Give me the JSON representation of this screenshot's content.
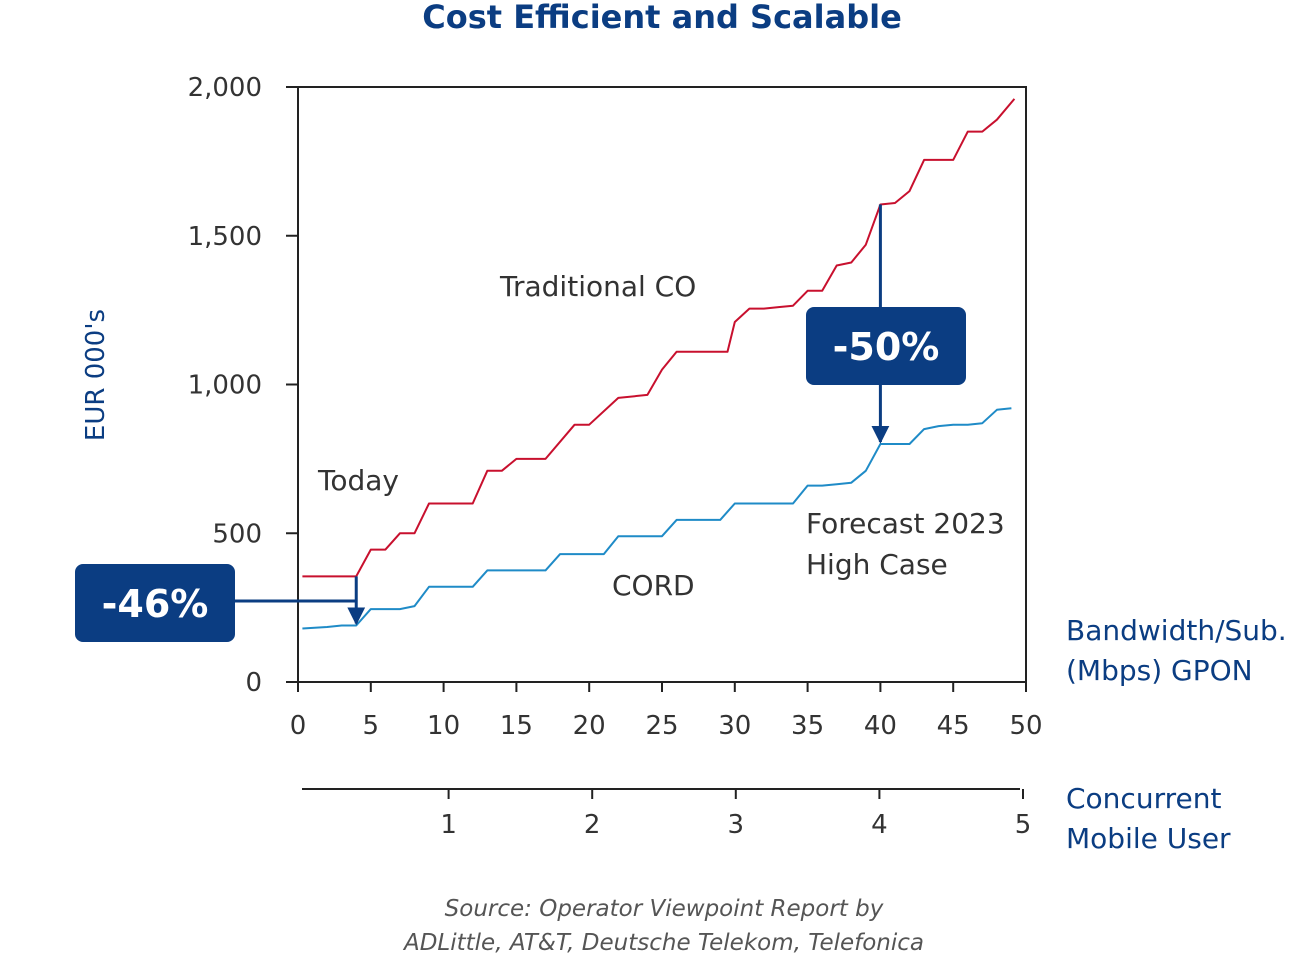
{
  "colors": {
    "traditional": "#c8102e",
    "cord": "#1f8bc7",
    "accent": "#0b3d82",
    "axis": "#222222"
  },
  "chart_data": {
    "type": "line",
    "title": "Cost Efficient and Scalable",
    "ylabel": "EUR 000's",
    "xlabel": "Bandwidth/Sub. (Mbps) GPON",
    "xlabel_lines": [
      "Bandwidth/Sub.",
      "(Mbps) GPON"
    ],
    "ylim": [
      0,
      2000
    ],
    "xlim": [
      0,
      50
    ],
    "yticks": [
      0,
      500,
      1000,
      1500,
      2000
    ],
    "ytick_labels": [
      "0",
      "500",
      "1,000",
      "1,500",
      "2,000"
    ],
    "xticks": [
      0,
      5,
      10,
      15,
      20,
      25,
      30,
      35,
      40,
      45,
      50
    ],
    "xtick_labels": [
      "0",
      "5",
      "10",
      "15",
      "20",
      "25",
      "30",
      "35",
      "40",
      "45",
      "50"
    ],
    "secondary_axis": {
      "label": "Concurrent Mobile User",
      "label_lines": [
        "Concurrent",
        "Mobile User"
      ],
      "ticks": [
        1,
        2,
        3,
        4,
        5
      ],
      "tick_labels": [
        "1",
        "2",
        "3",
        "4",
        "5"
      ]
    },
    "series": [
      {
        "name": "Traditional CO",
        "x": [
          0.3,
          4.0,
          5.0,
          6.0,
          7.0,
          8.0,
          9.0,
          10.0,
          12.0,
          13.0,
          14.0,
          15.0,
          17.0,
          19.0,
          20.0,
          22.0,
          24.0,
          25.0,
          26.0,
          28.0,
          29.5,
          30.0,
          31.0,
          32.0,
          33.0,
          34.0,
          35.0,
          36.0,
          37.0,
          38.0,
          39.0,
          40.0,
          41.0,
          42.0,
          43.0,
          44.0,
          45.0,
          46.0,
          47.0,
          48.0,
          49.2
        ],
        "y": [
          355,
          355,
          445,
          445,
          500,
          500,
          600,
          600,
          600,
          710,
          710,
          750,
          750,
          865,
          865,
          955,
          965,
          1050,
          1110,
          1110,
          1110,
          1210,
          1255,
          1255,
          1260,
          1265,
          1315,
          1315,
          1400,
          1410,
          1470,
          1605,
          1610,
          1650,
          1755,
          1755,
          1755,
          1850,
          1850,
          1890,
          1960
        ]
      },
      {
        "name": "CORD",
        "x": [
          0.3,
          2.0,
          3.0,
          4.0,
          5.0,
          6.0,
          7.0,
          8.0,
          9.0,
          10.0,
          11.0,
          12.0,
          13.0,
          14.0,
          15.0,
          16.0,
          17.0,
          18.0,
          19.0,
          20.0,
          21.0,
          22.0,
          23.0,
          24.0,
          25.0,
          26.0,
          27.0,
          28.0,
          29.0,
          30.0,
          31.0,
          32.0,
          33.0,
          34.0,
          35.0,
          36.0,
          37.0,
          38.0,
          39.0,
          40.0,
          41.0,
          42.0,
          43.0,
          44.0,
          45.0,
          46.0,
          47.0,
          48.0,
          49.0
        ],
        "y": [
          180,
          185,
          190,
          190,
          245,
          245,
          245,
          255,
          320,
          320,
          320,
          320,
          375,
          375,
          375,
          375,
          375,
          430,
          430,
          430,
          430,
          490,
          490,
          490,
          490,
          545,
          545,
          545,
          545,
          600,
          600,
          600,
          600,
          600,
          660,
          660,
          665,
          670,
          710,
          800,
          800,
          800,
          850,
          860,
          865,
          865,
          870,
          915,
          920
        ]
      }
    ],
    "annotations": {
      "traditional_label": "Traditional CO",
      "cord_label": "CORD",
      "today": "Today",
      "forecast_lines": [
        "Forecast 2023",
        "High Case"
      ],
      "badge_left": "-46%",
      "badge_right": "-50%"
    },
    "source_lines": [
      "Source: Operator Viewpoint Report by",
      "ADLittle, AT&T, Deutsche Telekom, Telefonica"
    ],
    "grid": false,
    "legend": "none"
  }
}
